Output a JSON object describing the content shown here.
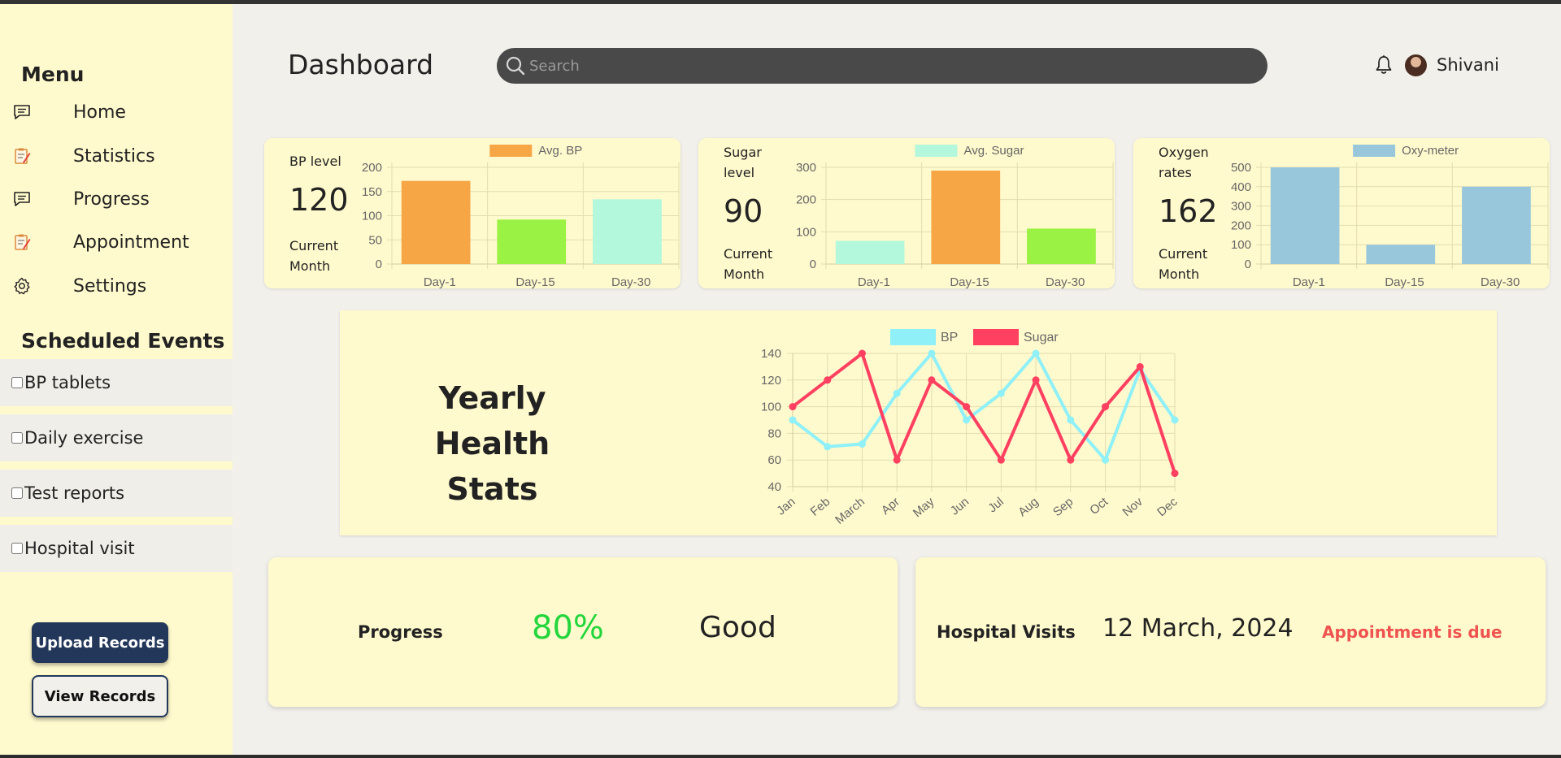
{
  "sidebar": {
    "menu_title": "Menu",
    "items": [
      {
        "label": "Home",
        "icon": "chat-icon"
      },
      {
        "label": "Statistics",
        "icon": "clipboard-icon"
      },
      {
        "label": "Progress",
        "icon": "chat-icon"
      },
      {
        "label": "Appointment",
        "icon": "clipboard-icon"
      },
      {
        "label": "Settings",
        "icon": "gear-icon"
      }
    ],
    "events_title": "Scheduled Events",
    "events": [
      "BP tablets",
      "Daily exercise",
      "Test reports",
      "Hospital visit"
    ],
    "upload_label": "Upload Records",
    "view_label": "View Records"
  },
  "header": {
    "title": "Dashboard",
    "search_placeholder": "Search",
    "user_name": "Shivani"
  },
  "cards": [
    {
      "label_top": "BP level",
      "value": "120",
      "label_bottom": "Current Month"
    },
    {
      "label_top": "Sugar level",
      "value": "90",
      "label_bottom": "Current Month"
    },
    {
      "label_top": "Oxygen rates",
      "value": "162",
      "label_bottom": "Current Month"
    }
  ],
  "yearly": {
    "title": "Yearly Health Stats"
  },
  "progress_card": {
    "label": "Progress",
    "percent": "80%",
    "status": "Good"
  },
  "visits_card": {
    "label": "Hospital Visits",
    "date": "12 March, 2024",
    "note": "Appointment is due"
  },
  "colors": {
    "sidebar_bg": "#fffacd",
    "orange": "#f7a646",
    "green": "#99f244",
    "mint": "#b3f7dc",
    "blue": "#98c7dc",
    "bp_line": "#8ff0f7",
    "sugar_line": "#ff4061",
    "progress_green": "#22d63c",
    "due_red": "#ef5350"
  },
  "chart_data": [
    {
      "type": "bar",
      "legend": "Avg. BP",
      "categories": [
        "Day-1",
        "Day-15",
        "Day-30"
      ],
      "values": [
        172,
        92,
        134
      ],
      "colors": [
        "#f7a646",
        "#99f244",
        "#b3f7dc"
      ],
      "yticks": [
        0,
        50,
        100,
        150,
        200
      ],
      "ylim": [
        0,
        200
      ]
    },
    {
      "type": "bar",
      "legend": "Avg. Sugar",
      "categories": [
        "Day-1",
        "Day-15",
        "Day-30"
      ],
      "values": [
        72,
        290,
        110
      ],
      "colors": [
        "#b3f7dc",
        "#f7a646",
        "#99f244"
      ],
      "yticks": [
        0,
        100,
        200,
        300
      ],
      "ylim": [
        0,
        300
      ]
    },
    {
      "type": "bar",
      "legend": "Oxy-meter",
      "categories": [
        "Day-1",
        "Day-15",
        "Day-30"
      ],
      "values": [
        500,
        100,
        400
      ],
      "colors": [
        "#98c7dc",
        "#98c7dc",
        "#98c7dc"
      ],
      "yticks": [
        0,
        100,
        200,
        300,
        400,
        500
      ],
      "ylim": [
        0,
        500
      ]
    },
    {
      "type": "line",
      "x": [
        "Jan",
        "Feb",
        "March",
        "Apr",
        "May",
        "Jun",
        "Jul",
        "Aug",
        "Sep",
        "Oct",
        "Nov",
        "Dec"
      ],
      "series": [
        {
          "name": "BP",
          "color": "#8ff0f7",
          "values": [
            90,
            70,
            72,
            110,
            140,
            90,
            110,
            140,
            90,
            60,
            128,
            90
          ]
        },
        {
          "name": "Sugar",
          "color": "#ff4061",
          "values": [
            100,
            120,
            140,
            60,
            120,
            100,
            60,
            120,
            60,
            100,
            130,
            50
          ]
        }
      ],
      "yticks": [
        40,
        60,
        80,
        100,
        120,
        140
      ],
      "ylim": [
        40,
        140
      ]
    }
  ]
}
